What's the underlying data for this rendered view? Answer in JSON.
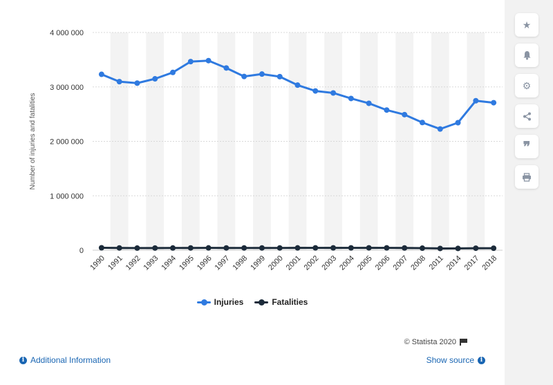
{
  "chart_data": {
    "type": "line",
    "categories": [
      "1990",
      "1991",
      "1992",
      "1993",
      "1994",
      "1995",
      "1996",
      "1997",
      "1998",
      "1999",
      "2000",
      "2001",
      "2002",
      "2003",
      "2004",
      "2005",
      "2006",
      "2007",
      "2008",
      "2011",
      "2014",
      "2017",
      "2018"
    ],
    "series": [
      {
        "name": "Injuries",
        "color": "#2f7ae0",
        "values": [
          3231000,
          3097000,
          3070000,
          3149000,
          3266000,
          3465000,
          3483000,
          3348000,
          3192000,
          3236000,
          3189000,
          3033000,
          2926000,
          2889000,
          2788000,
          2699000,
          2575000,
          2491000,
          2346000,
          2227000,
          2343000,
          2746000,
          2710000
        ]
      },
      {
        "name": "Fatalities",
        "color": "#1c2b3a",
        "values": [
          44599,
          41508,
          39250,
          40150,
          40716,
          41817,
          42065,
          42013,
          41501,
          41717,
          41945,
          42196,
          43005,
          42884,
          42836,
          43510,
          42708,
          41259,
          37423,
          32479,
          32744,
          37133,
          36560
        ]
      }
    ],
    "ylabel": "Number of injuries and fatalities",
    "ylim": [
      0,
      4000000
    ],
    "yticks": [
      "0",
      "1 000 000",
      "2 000 000",
      "3 000 000",
      "4 000 000"
    ],
    "grid": true,
    "legend": "bottom-center"
  },
  "footer": {
    "credit": "© Statista 2020",
    "additional_info": "Additional Information",
    "show_source": "Show source"
  },
  "sidebar": {
    "icons": [
      "star-icon",
      "bell-icon",
      "gear-icon",
      "share-icon",
      "quote-icon",
      "print-icon"
    ]
  }
}
